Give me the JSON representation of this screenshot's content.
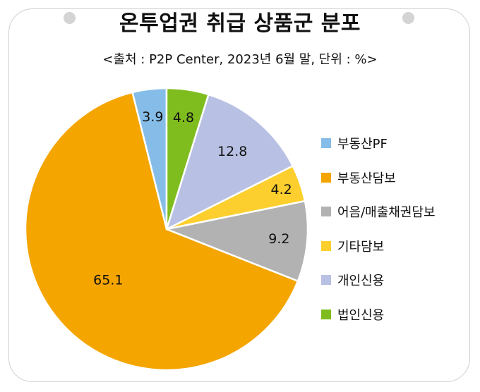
{
  "title": "온투업권 취급 상품군 분포",
  "subtitle": "<출처 : P2P Center, 2023년 6월 말, 단위 : %>",
  "chart_data": {
    "type": "pie",
    "title": "온투업권 취급 상품군 분포",
    "subtitle": "<출처 : P2P Center, 2023년 6월 말, 단위 : %>",
    "unit": "%",
    "legend_position": "right",
    "slices": [
      {
        "label": "부동산PF",
        "value": 3.9,
        "display": "3.9",
        "color": "#86bde8"
      },
      {
        "label": "부동산담보",
        "value": 65.1,
        "display": "65.1",
        "color": "#f4a500"
      },
      {
        "label": "어음/매출채권담보",
        "value": 9.2,
        "display": "9.2",
        "color": "#b2b2b2"
      },
      {
        "label": "기타담보",
        "value": 4.2,
        "display": "4.2",
        "color": "#fccf2e"
      },
      {
        "label": "개인신용",
        "value": 12.8,
        "display": "12.8",
        "color": "#b8c0e3"
      },
      {
        "label": "법인신용",
        "value": 4.8,
        "display": "4.8",
        "color": "#7fbd1f"
      }
    ]
  }
}
